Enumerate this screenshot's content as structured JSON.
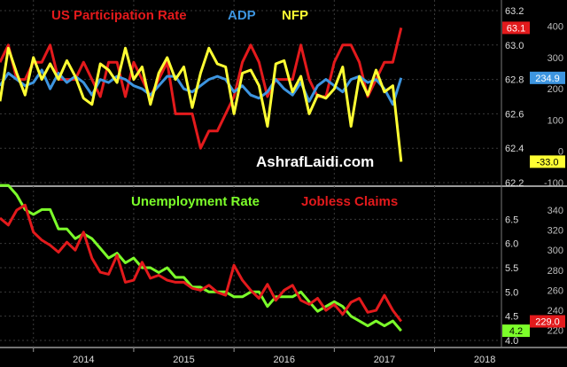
{
  "watermark": "AshrafLaidi.com",
  "x_labels": [
    "2014",
    "2015",
    "2016",
    "2017",
    "2018"
  ],
  "colors": {
    "background": "#000000",
    "grid": "#3a3a3a",
    "red": "#e31a1c",
    "blue": "#3d95e0",
    "yellow": "#ffff33",
    "green": "#7cff2a",
    "axis_text": "#dddddd",
    "axis_text_alt": "#bbbbbb"
  },
  "chart_data": [
    {
      "type": "line",
      "x_range": [
        "2013-09",
        "2018-09"
      ],
      "axes": {
        "left_inner": {
          "label": "",
          "ylim": [
            62.2,
            63.2
          ],
          "ticks": [
            "63.2",
            "63.0",
            "62.8",
            "62.6",
            "62.4",
            "62.2"
          ]
        },
        "right_outer": {
          "label": "",
          "ylim": [
            -100,
            450
          ],
          "ticks": [
            "400",
            "300",
            "200",
            "100",
            "0",
            "-100"
          ]
        }
      },
      "series": [
        {
          "name": "US Participation Rate",
          "axis": "left_inner",
          "color": "#e31a1c",
          "last_value_tag": "63.1",
          "x": [
            "2013-09",
            "2013-10",
            "2013-11",
            "2013-12",
            "2014-01",
            "2014-02",
            "2014-03",
            "2014-04",
            "2014-05",
            "2014-06",
            "2014-07",
            "2014-08",
            "2014-09",
            "2014-10",
            "2014-11",
            "2014-12",
            "2015-01",
            "2015-02",
            "2015-03",
            "2015-04",
            "2015-05",
            "2015-06",
            "2015-07",
            "2015-08",
            "2015-09",
            "2015-10",
            "2015-11",
            "2015-12",
            "2016-01",
            "2016-02",
            "2016-03",
            "2016-04",
            "2016-05",
            "2016-06",
            "2016-07",
            "2016-08",
            "2016-09",
            "2016-10",
            "2016-11",
            "2016-12",
            "2017-01",
            "2017-02",
            "2017-03",
            "2017-04",
            "2017-05",
            "2017-06",
            "2017-07",
            "2017-08",
            "2017-09"
          ],
          "values": [
            62.9,
            63.0,
            62.8,
            62.8,
            62.9,
            62.9,
            63.0,
            62.8,
            62.8,
            62.8,
            62.9,
            62.8,
            62.7,
            62.9,
            62.9,
            62.7,
            62.9,
            62.8,
            62.7,
            62.8,
            62.9,
            62.6,
            62.6,
            62.6,
            62.4,
            62.5,
            62.5,
            62.6,
            62.7,
            62.9,
            63.0,
            62.9,
            62.7,
            62.8,
            62.8,
            62.8,
            63.0,
            62.8,
            62.7,
            62.7,
            62.9,
            63.0,
            63.0,
            62.9,
            62.7,
            62.8,
            62.9,
            62.9,
            63.1
          ]
        },
        {
          "name": "ADP",
          "axis": "right_outer",
          "color": "#3d95e0",
          "last_value_tag": "234.9",
          "x": [
            "2013-09",
            "2013-10",
            "2013-11",
            "2013-12",
            "2014-01",
            "2014-02",
            "2014-03",
            "2014-04",
            "2014-05",
            "2014-06",
            "2014-07",
            "2014-08",
            "2014-09",
            "2014-10",
            "2014-11",
            "2014-12",
            "2015-01",
            "2015-02",
            "2015-03",
            "2015-04",
            "2015-05",
            "2015-06",
            "2015-07",
            "2015-08",
            "2015-09",
            "2015-10",
            "2015-11",
            "2015-12",
            "2016-01",
            "2016-02",
            "2016-03",
            "2016-04",
            "2016-05",
            "2016-06",
            "2016-07",
            "2016-08",
            "2016-09",
            "2016-10",
            "2016-11",
            "2016-12",
            "2017-01",
            "2017-02",
            "2017-03",
            "2017-04",
            "2017-05",
            "2017-06",
            "2017-07",
            "2017-08",
            "2017-09"
          ],
          "values": [
            210,
            250,
            230,
            210,
            220,
            260,
            200,
            250,
            220,
            240,
            220,
            180,
            230,
            220,
            240,
            230,
            210,
            200,
            180,
            210,
            240,
            240,
            200,
            190,
            210,
            230,
            240,
            230,
            190,
            210,
            180,
            170,
            190,
            230,
            200,
            180,
            220,
            160,
            210,
            230,
            210,
            190,
            230,
            240,
            220,
            230,
            200,
            150,
            235
          ]
        },
        {
          "name": "NFP",
          "axis": "right_outer",
          "color": "#ffff33",
          "last_value_tag": "-33.0",
          "x": [
            "2013-09",
            "2013-10",
            "2013-11",
            "2013-12",
            "2014-01",
            "2014-02",
            "2014-03",
            "2014-04",
            "2014-05",
            "2014-06",
            "2014-07",
            "2014-08",
            "2014-09",
            "2014-10",
            "2014-11",
            "2014-12",
            "2015-01",
            "2015-02",
            "2015-03",
            "2015-04",
            "2015-05",
            "2015-06",
            "2015-07",
            "2015-08",
            "2015-09",
            "2015-10",
            "2015-11",
            "2015-12",
            "2016-01",
            "2016-02",
            "2016-03",
            "2016-04",
            "2016-05",
            "2016-06",
            "2016-07",
            "2016-08",
            "2016-09",
            "2016-10",
            "2016-11",
            "2016-12",
            "2017-01",
            "2017-02",
            "2017-03",
            "2017-04",
            "2017-05",
            "2017-06",
            "2017-07",
            "2017-08",
            "2017-09"
          ],
          "values": [
            160,
            330,
            250,
            180,
            300,
            230,
            280,
            230,
            290,
            240,
            170,
            150,
            280,
            260,
            220,
            330,
            230,
            270,
            150,
            250,
            300,
            230,
            270,
            140,
            250,
            330,
            280,
            270,
            120,
            250,
            260,
            210,
            80,
            280,
            290,
            190,
            240,
            120,
            180,
            170,
            200,
            270,
            80,
            240,
            180,
            260,
            190,
            210,
            -33
          ]
        }
      ]
    },
    {
      "type": "line",
      "axes": {
        "left_inner": {
          "label": "",
          "ylim": [
            4.0,
            7.0
          ],
          "ticks": [
            "6.5",
            "6.0",
            "5.5",
            "5.0",
            "4.5",
            "4.0"
          ]
        },
        "right_outer": {
          "label": "",
          "ylim": [
            210,
            355
          ],
          "ticks": [
            "340",
            "320",
            "300",
            "280",
            "260",
            "240",
            "220"
          ]
        }
      },
      "series": [
        {
          "name": "Unemployment Rate",
          "axis": "left_inner",
          "color": "#7cff2a",
          "last_value_tag": "4.2",
          "x": [
            "2013-09",
            "2013-10",
            "2013-11",
            "2013-12",
            "2014-01",
            "2014-02",
            "2014-03",
            "2014-04",
            "2014-05",
            "2014-06",
            "2014-07",
            "2014-08",
            "2014-09",
            "2014-10",
            "2014-11",
            "2014-12",
            "2015-01",
            "2015-02",
            "2015-03",
            "2015-04",
            "2015-05",
            "2015-06",
            "2015-07",
            "2015-08",
            "2015-09",
            "2015-10",
            "2015-11",
            "2015-12",
            "2016-01",
            "2016-02",
            "2016-03",
            "2016-04",
            "2016-05",
            "2016-06",
            "2016-07",
            "2016-08",
            "2016-09",
            "2016-10",
            "2016-11",
            "2016-12",
            "2017-01",
            "2017-02",
            "2017-03",
            "2017-04",
            "2017-05",
            "2017-06",
            "2017-07",
            "2017-08",
            "2017-09"
          ],
          "values": [
            7.2,
            7.2,
            7.0,
            6.7,
            6.6,
            6.7,
            6.7,
            6.3,
            6.3,
            6.1,
            6.2,
            6.1,
            5.9,
            5.7,
            5.8,
            5.6,
            5.7,
            5.5,
            5.5,
            5.4,
            5.5,
            5.3,
            5.3,
            5.1,
            5.1,
            5.0,
            5.0,
            5.0,
            4.9,
            4.9,
            5.0,
            5.0,
            4.7,
            4.9,
            4.9,
            4.9,
            5.0,
            4.8,
            4.6,
            4.7,
            4.8,
            4.7,
            4.5,
            4.4,
            4.3,
            4.4,
            4.3,
            4.4,
            4.2
          ]
        },
        {
          "name": "Jobless Claims",
          "axis": "right_outer",
          "color": "#e31a1c",
          "last_value_tag": "229.0",
          "x": [
            "2013-09",
            "2013-10",
            "2013-11",
            "2013-12",
            "2014-01",
            "2014-02",
            "2014-03",
            "2014-04",
            "2014-05",
            "2014-06",
            "2014-07",
            "2014-08",
            "2014-09",
            "2014-10",
            "2014-11",
            "2014-12",
            "2015-01",
            "2015-02",
            "2015-03",
            "2015-04",
            "2015-05",
            "2015-06",
            "2015-07",
            "2015-08",
            "2015-09",
            "2015-10",
            "2015-11",
            "2015-12",
            "2016-01",
            "2016-02",
            "2016-03",
            "2016-04",
            "2016-05",
            "2016-06",
            "2016-07",
            "2016-08",
            "2016-09",
            "2016-10",
            "2016-11",
            "2016-12",
            "2017-01",
            "2017-02",
            "2017-03",
            "2017-04",
            "2017-05",
            "2017-06",
            "2017-07",
            "2017-08",
            "2017-09"
          ],
          "values": [
            332,
            325,
            340,
            345,
            318,
            310,
            305,
            298,
            308,
            300,
            318,
            292,
            278,
            276,
            295,
            268,
            270,
            288,
            272,
            275,
            270,
            268,
            268,
            262,
            260,
            265,
            258,
            255,
            285,
            270,
            260,
            252,
            266,
            250,
            260,
            265,
            250,
            246,
            252,
            240,
            246,
            236,
            248,
            252,
            238,
            240,
            255,
            240,
            229
          ]
        }
      ]
    }
  ]
}
